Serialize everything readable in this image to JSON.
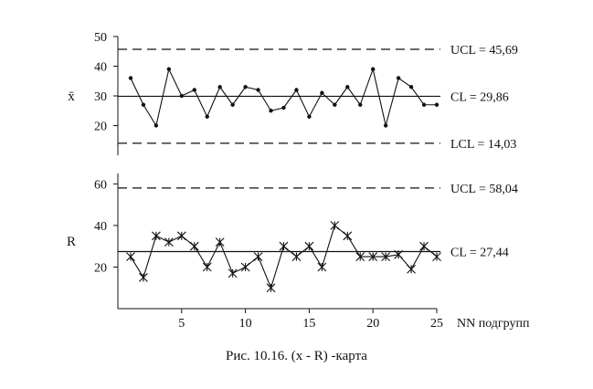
{
  "caption": "Рис. 10.16. (x - R) -карта",
  "chart_data": [
    {
      "type": "line",
      "ylabel": "x̄",
      "xlim": [
        0,
        25
      ],
      "ylim": [
        10,
        50
      ],
      "y_ticks": [
        20,
        30,
        40,
        50
      ],
      "control_limits": [
        {
          "name": "UCL",
          "value": 45.69,
          "label": "UCL = 45,69",
          "style": "dashed"
        },
        {
          "name": "CL",
          "value": 29.86,
          "label": "CL = 29,86",
          "style": "solid"
        },
        {
          "name": "LCL",
          "value": 14.03,
          "label": "LCL = 14,03",
          "style": "dashed"
        }
      ],
      "marker": "dot",
      "x": [
        1,
        2,
        3,
        4,
        5,
        6,
        7,
        8,
        9,
        10,
        11,
        12,
        13,
        14,
        15,
        16,
        17,
        18,
        19,
        20,
        21,
        22,
        23,
        24,
        25
      ],
      "values": [
        36,
        27,
        20,
        39,
        30,
        32,
        23,
        33,
        27,
        33,
        32,
        25,
        26,
        32,
        23,
        31,
        27,
        33,
        27,
        39,
        20,
        36,
        33,
        27,
        27
      ]
    },
    {
      "type": "line",
      "ylabel": "R",
      "xlabel": "NN подгрупп",
      "xlim": [
        0,
        25
      ],
      "ylim": [
        0,
        65
      ],
      "x_ticks": [
        5,
        10,
        15,
        20,
        25
      ],
      "y_ticks": [
        20,
        40,
        60
      ],
      "control_limits": [
        {
          "name": "UCL",
          "value": 58.04,
          "label": "UCL = 58,04",
          "style": "dashed"
        },
        {
          "name": "CL",
          "value": 27.44,
          "label": "CL = 27,44",
          "style": "solid"
        }
      ],
      "marker": "star",
      "x": [
        1,
        2,
        3,
        4,
        5,
        6,
        7,
        8,
        9,
        10,
        11,
        12,
        13,
        14,
        15,
        16,
        17,
        18,
        19,
        20,
        21,
        22,
        23,
        24,
        25
      ],
      "values": [
        25,
        15,
        35,
        32,
        35,
        30,
        20,
        32,
        17,
        20,
        25,
        10,
        30,
        25,
        30,
        20,
        40,
        35,
        25,
        25,
        25,
        26,
        19,
        30,
        25
      ]
    }
  ]
}
